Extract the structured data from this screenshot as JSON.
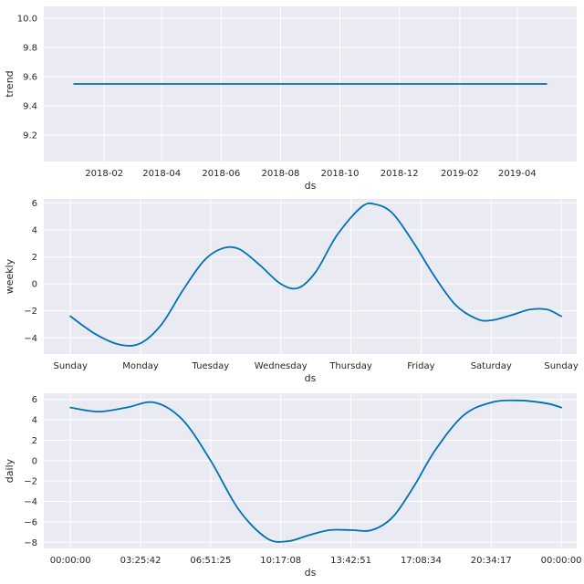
{
  "colors": {
    "series": "#0072b2",
    "background": "#eaeaf2",
    "grid": "#ffffff"
  },
  "chart_data": [
    {
      "type": "line",
      "ylabel": "trend",
      "xlabel": "ds",
      "x_type": "date",
      "xlim": [
        "2017-12-01",
        "2019-06-01"
      ],
      "ylim": [
        9.02,
        10.08
      ],
      "x_ticks": [
        {
          "value": "2018-02-01",
          "label": "2018-02"
        },
        {
          "value": "2018-04-01",
          "label": "2018-04"
        },
        {
          "value": "2018-06-01",
          "label": "2018-06"
        },
        {
          "value": "2018-08-01",
          "label": "2018-08"
        },
        {
          "value": "2018-10-01",
          "label": "2018-10"
        },
        {
          "value": "2018-12-01",
          "label": "2018-12"
        },
        {
          "value": "2019-02-01",
          "label": "2019-02"
        },
        {
          "value": "2019-04-01",
          "label": "2019-04"
        }
      ],
      "y_ticks": [
        {
          "value": 9.2,
          "label": "9.2"
        },
        {
          "value": 9.4,
          "label": "9.4"
        },
        {
          "value": 9.6,
          "label": "9.6"
        },
        {
          "value": 9.8,
          "label": "9.8"
        },
        {
          "value": 10.0,
          "label": "10.0"
        }
      ],
      "series": [
        {
          "x": [
            "2018-01-01",
            "2019-05-01"
          ],
          "y": [
            9.55,
            9.55
          ]
        }
      ],
      "grid": true
    },
    {
      "type": "line",
      "ylabel": "weekly",
      "xlabel": "ds",
      "xlim": [
        -0.38,
        7.22
      ],
      "ylim": [
        -5.2,
        6.3
      ],
      "x_ticks": [
        {
          "value": 0,
          "label": "Sunday"
        },
        {
          "value": 1,
          "label": "Monday"
        },
        {
          "value": 2,
          "label": "Tuesday"
        },
        {
          "value": 3,
          "label": "Wednesday"
        },
        {
          "value": 4,
          "label": "Thursday"
        },
        {
          "value": 5,
          "label": "Friday"
        },
        {
          "value": 6,
          "label": "Saturday"
        },
        {
          "value": 7,
          "label": "Sunday"
        }
      ],
      "y_ticks": [
        {
          "value": -4,
          "label": "−4"
        },
        {
          "value": -2,
          "label": "−2"
        },
        {
          "value": 0,
          "label": "0"
        },
        {
          "value": 2,
          "label": "2"
        },
        {
          "value": 4,
          "label": "4"
        },
        {
          "value": 6,
          "label": "6"
        }
      ],
      "series": [
        {
          "x": [
            0,
            0.35,
            0.7,
            1.0,
            1.3,
            1.6,
            1.9,
            2.15,
            2.4,
            2.7,
            3.0,
            3.25,
            3.5,
            3.8,
            4.15,
            4.35,
            4.6,
            4.9,
            5.2,
            5.5,
            5.8,
            6.0,
            6.3,
            6.55,
            6.8,
            7.0
          ],
          "y": [
            -2.4,
            -3.7,
            -4.5,
            -4.4,
            -3.0,
            -0.5,
            1.7,
            2.6,
            2.6,
            1.4,
            0.0,
            -0.3,
            0.9,
            3.6,
            5.7,
            5.9,
            5.2,
            3.0,
            0.5,
            -1.6,
            -2.6,
            -2.7,
            -2.3,
            -1.9,
            -1.9,
            -2.4
          ]
        }
      ],
      "grid": true
    },
    {
      "type": "line",
      "ylabel": "daily",
      "xlabel": "ds",
      "xlim": [
        -0.38,
        7.22
      ],
      "ylim": [
        -8.6,
        6.6
      ],
      "x_ticks": [
        {
          "value": 0,
          "label": "00:00:00"
        },
        {
          "value": 1,
          "label": "03:25:42"
        },
        {
          "value": 2,
          "label": "06:51:25"
        },
        {
          "value": 3,
          "label": "10:17:08"
        },
        {
          "value": 4,
          "label": "13:42:51"
        },
        {
          "value": 5,
          "label": "17:08:34"
        },
        {
          "value": 6,
          "label": "20:34:17"
        },
        {
          "value": 7,
          "label": "00:00:00"
        }
      ],
      "y_ticks": [
        {
          "value": -8,
          "label": "−8"
        },
        {
          "value": -6,
          "label": "−6"
        },
        {
          "value": -4,
          "label": "−4"
        },
        {
          "value": -2,
          "label": "−2"
        },
        {
          "value": 0,
          "label": "0"
        },
        {
          "value": 2,
          "label": "2"
        },
        {
          "value": 4,
          "label": "4"
        },
        {
          "value": 6,
          "label": "6"
        }
      ],
      "series": [
        {
          "x": [
            0,
            0.4,
            0.8,
            1.2,
            1.6,
            2.0,
            2.4,
            2.8,
            3.1,
            3.4,
            3.7,
            4.0,
            4.3,
            4.6,
            4.9,
            5.2,
            5.6,
            6.0,
            6.4,
            6.8,
            7.0
          ],
          "y": [
            5.2,
            4.8,
            5.2,
            5.7,
            4.0,
            0.0,
            -4.8,
            -7.6,
            -7.9,
            -7.3,
            -6.8,
            -6.8,
            -6.8,
            -5.5,
            -2.5,
            1.0,
            4.4,
            5.7,
            5.9,
            5.6,
            5.2
          ]
        }
      ],
      "grid": true
    }
  ]
}
